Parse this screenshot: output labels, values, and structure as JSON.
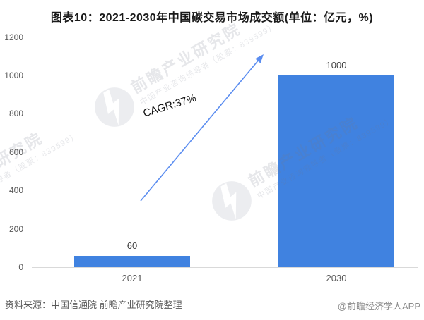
{
  "chart_data": {
    "type": "bar",
    "title": "图表10：2021-2030年中国碳交易市场成交额(单位：亿元，%)",
    "categories": [
      "2021",
      "2030"
    ],
    "values": [
      60,
      1000
    ],
    "bar_labels": [
      "60",
      "1000"
    ],
    "ylim": [
      0,
      1200
    ],
    "yticks": [
      0,
      200,
      400,
      600,
      800,
      1000,
      1200
    ],
    "grid": false,
    "legend": null,
    "bar_color": "#4082e0",
    "annotation": {
      "text": "CAGR:37%",
      "type": "growth-arrow",
      "arrow_color": "#5b8df0"
    }
  },
  "footer": {
    "source": "资料来源：中国信通院 前瞻产业研究院整理",
    "credit": "@前瞻经济学人APP"
  },
  "watermark": {
    "line1": "前瞻产业研究院",
    "line2": "中国产业咨询领导者（股票：839599）"
  },
  "colors": {
    "bar": "#4082e0",
    "arrow": "#5b8df0",
    "axis_line": "#d9d9d9",
    "tick_text": "#595959",
    "title_text": "#1a1a1a",
    "value_text": "#404040",
    "source_text": "#595959",
    "credit_text": "#8c8c8c"
  }
}
